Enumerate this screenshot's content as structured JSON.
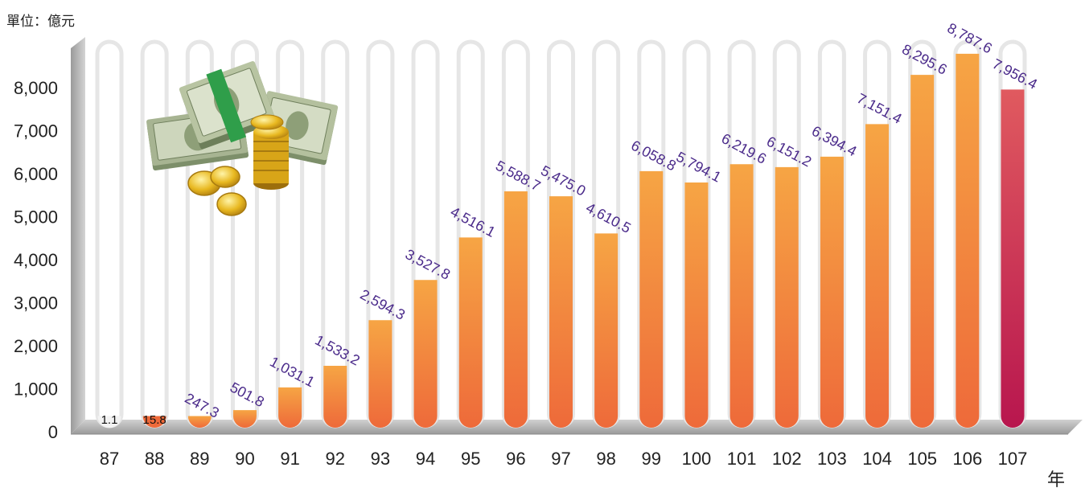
{
  "unit_label": "單位：億元",
  "year_suffix": "年",
  "colors": {
    "bar_top": "#f6a544",
    "bar_bottom": "#ee6a3a",
    "last_bar_top": "#e05a5f",
    "last_bar_bottom": "#b8164e",
    "track": "#e6e6e6",
    "label": "#4a2a8a"
  },
  "decoration_icon": "money-stack-and-coins-icon",
  "chart_data": {
    "type": "bar",
    "title": "",
    "xlabel": "",
    "ylabel": "",
    "ylim": [
      0,
      9200
    ],
    "yticks": [
      0,
      1000,
      2000,
      3000,
      4000,
      5000,
      6000,
      7000,
      8000
    ],
    "ytick_labels": [
      "0",
      "1,000",
      "2,000",
      "3,000",
      "4,000",
      "5,000",
      "6,000",
      "7,000",
      "8,000"
    ],
    "categories": [
      "87",
      "88",
      "89",
      "90",
      "91",
      "92",
      "93",
      "94",
      "95",
      "96",
      "97",
      "98",
      "99",
      "100",
      "101",
      "102",
      "103",
      "104",
      "105",
      "106",
      "107"
    ],
    "values": [
      1.1,
      15.8,
      247.3,
      501.8,
      1031.1,
      1533.2,
      2594.3,
      3527.8,
      4516.1,
      5588.7,
      5475.0,
      4610.5,
      6058.8,
      5794.1,
      6219.6,
      6151.2,
      6394.4,
      7151.4,
      8295.6,
      8787.6,
      7956.4
    ],
    "value_labels": [
      "1.1",
      "15.8",
      "247.3",
      "501.8",
      "1,031.1",
      "1,533.2",
      "2,594.3",
      "3,527.8",
      "4,516.1",
      "5,588.7",
      "5,475.0",
      "4,610.5",
      "6,058.8",
      "5,794.1",
      "6,219.6",
      "6,151.2",
      "6,394.4",
      "7,151.4",
      "8,295.6",
      "8,787.6",
      "7,956.4"
    ],
    "grid": false,
    "legend": "none"
  }
}
